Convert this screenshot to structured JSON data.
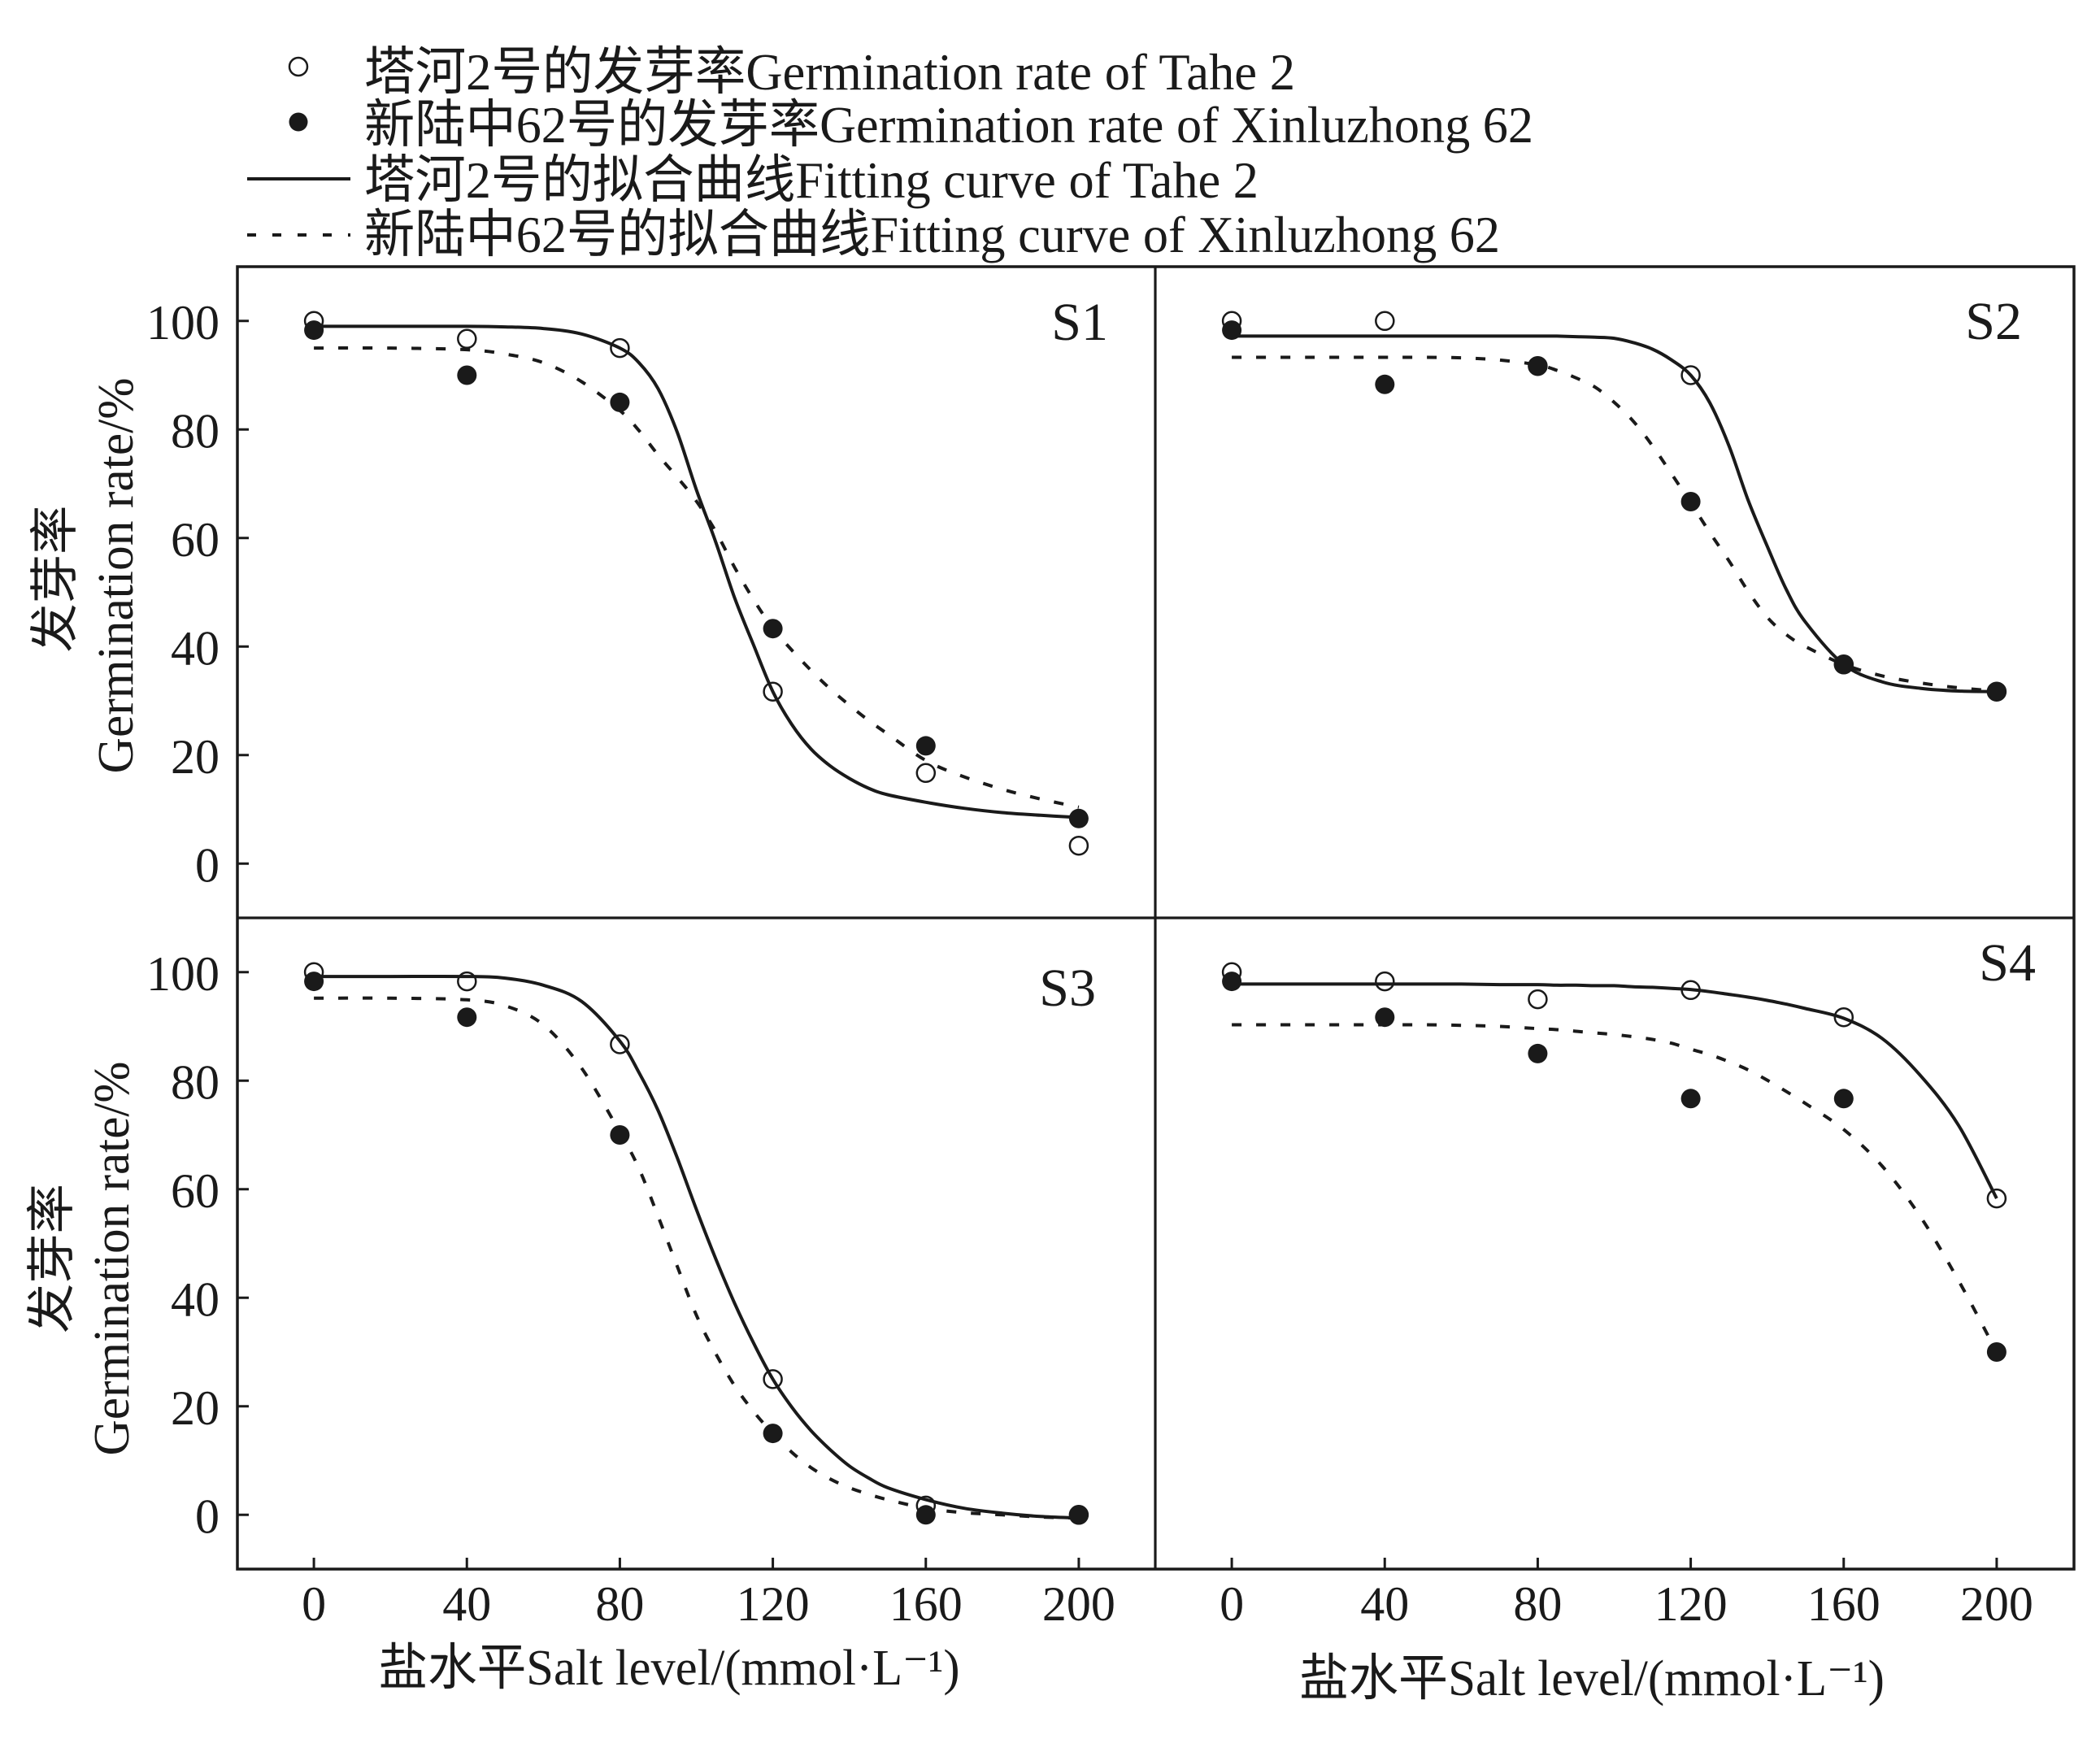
{
  "chart_data": {
    "type": "scatter",
    "legend_position": "top-left",
    "grid": false,
    "series": [
      {
        "name": "塔河2号的发芽率Germination rate of Tahe 2",
        "marker": "open-circle"
      },
      {
        "name": "新陆中62号的发芽率Germination rate of Xinluzhong 62",
        "marker": "filled-circle"
      },
      {
        "name": "塔河2号的拟合曲线Fitting curve of Tahe 2",
        "line": "solid"
      },
      {
        "name": "新陆中62号的拟合曲线Fitting curve of Xinluzhong 62",
        "line": "dashed"
      }
    ],
    "xlabel": "盐水平Salt level/(mmol·L⁻¹)",
    "ylabel_cn": "发芽率",
    "ylabel_en": "Germination rate/%",
    "xlim": [
      -20,
      220
    ],
    "ylim": [
      -10,
      110
    ],
    "xticks": [
      0,
      40,
      80,
      120,
      160,
      200
    ],
    "yticks": [
      0,
      20,
      40,
      60,
      80,
      100
    ],
    "x": [
      0,
      40,
      80,
      120,
      160,
      200
    ],
    "fit_x": [
      0,
      20,
      40,
      50,
      60,
      70,
      80,
      85,
      90,
      95,
      100,
      105,
      110,
      115,
      120,
      125,
      130,
      135,
      140,
      145,
      150,
      160,
      170,
      180,
      190,
      200
    ],
    "panels": [
      {
        "title": "S1",
        "tahe2_rate": [
          100,
          96.7,
          95,
          31.7,
          16.7,
          3.3
        ],
        "xinluzhong62_rate": [
          98.3,
          90,
          85,
          43.3,
          21.7,
          8.3
        ],
        "tahe2_fit": [
          99.0,
          99.0,
          99.0,
          98.9,
          98.6,
          97.6,
          95.0,
          92.3,
          87.5,
          79.5,
          68.9,
          59.4,
          49.0,
          40.2,
          31.7,
          25.6,
          21.1,
          18.0,
          15.7,
          13.9,
          12.7,
          11.3,
          10.2,
          9.4,
          8.9,
          8.5
        ],
        "xinluzhong62_fit": [
          95.0,
          95.0,
          94.7,
          93.9,
          92.3,
          88.8,
          83.5,
          79.8,
          75.3,
          71.2,
          66.8,
          61.3,
          54.6,
          48.6,
          43.4,
          39.3,
          35.6,
          32.2,
          29.2,
          26.4,
          23.9,
          19.0,
          16.0,
          13.7,
          11.9,
          10.4
        ]
      },
      {
        "title": "S2",
        "tahe2_rate": [
          100,
          100,
          91.7,
          90,
          36.7,
          31.7
        ],
        "xinluzhong62_rate": [
          98.3,
          88.3,
          91.7,
          66.7,
          36.7,
          31.7
        ],
        "tahe2_fit": [
          97.2,
          97.2,
          97.2,
          97.2,
          97.2,
          97.2,
          97.2,
          97.2,
          97.1,
          97.0,
          96.8,
          96.0,
          94.8,
          92.8,
          90.0,
          84.9,
          77.0,
          67.0,
          58.5,
          50.5,
          44.5,
          36.7,
          33.5,
          32.3,
          31.8,
          31.7
        ],
        "xinluzhong62_fit": [
          93.3,
          93.3,
          93.3,
          93.3,
          93.2,
          92.8,
          91.9,
          90.9,
          89.5,
          87.8,
          85.0,
          81.5,
          77.0,
          71.8,
          66.5,
          61.0,
          55.8,
          50.2,
          45.4,
          42.2,
          40.0,
          36.7,
          34.6,
          33.3,
          32.4,
          31.8
        ]
      },
      {
        "title": "S3",
        "tahe2_rate": [
          100,
          98.3,
          86.7,
          25,
          1.7,
          0
        ],
        "xinluzhong62_rate": [
          98.3,
          91.7,
          70,
          15,
          0,
          0
        ],
        "tahe2_fit": [
          99.2,
          99.2,
          99.2,
          98.9,
          97.6,
          94.6,
          87.3,
          81.5,
          74.5,
          65.8,
          56.3,
          47.3,
          39.0,
          31.6,
          25.0,
          19.8,
          15.5,
          12.0,
          9.0,
          6.8,
          5.0,
          2.8,
          1.2,
          0.3,
          -0.3,
          -0.6
        ],
        "xinluzhong62_fit": [
          95.2,
          95.2,
          94.9,
          93.8,
          90.3,
          82.3,
          70.5,
          63.8,
          55.0,
          45.8,
          36.8,
          29.8,
          23.8,
          19.0,
          15.0,
          11.5,
          8.7,
          6.6,
          5.0,
          3.8,
          2.8,
          1.2,
          0.4,
          0.0,
          -0.4,
          -0.6
        ]
      },
      {
        "title": "S4",
        "tahe2_rate": [
          100,
          98.3,
          95,
          96.7,
          91.7,
          58.3
        ],
        "xinluzhong62_rate": [
          98.3,
          91.7,
          85,
          76.7,
          76.7,
          30
        ],
        "tahe2_fit": [
          97.8,
          97.8,
          97.8,
          97.8,
          97.8,
          97.7,
          97.7,
          97.6,
          97.6,
          97.5,
          97.5,
          97.3,
          97.2,
          97.0,
          96.8,
          96.4,
          95.9,
          95.4,
          94.8,
          94.1,
          93.3,
          91.5,
          87.8,
          81.0,
          71.8,
          58.3
        ],
        "xinluzhong62_fit": [
          90.3,
          90.3,
          90.3,
          90.3,
          90.2,
          90.0,
          89.6,
          89.4,
          89.1,
          88.8,
          88.5,
          88.1,
          87.6,
          86.9,
          85.8,
          84.8,
          83.5,
          82.0,
          80.1,
          78.0,
          75.8,
          71.0,
          64.3,
          55.0,
          43.2,
          30.0
        ]
      }
    ]
  }
}
